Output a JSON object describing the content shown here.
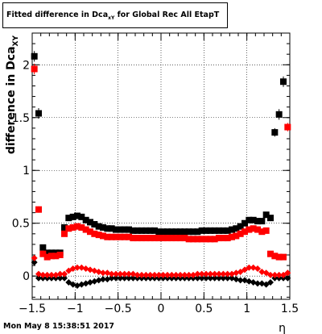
{
  "page": {
    "title_main": "Fitted difference in Dca",
    "title_sub": "xY",
    "title_rest": " for Global Rec All EtapT",
    "timestamp": "Mon May  8 15:38:51 2017"
  },
  "chart_data": {
    "type": "scatter",
    "title": "Fitted difference in Dca_xY for Global Rec All EtapT",
    "xlabel": "η",
    "ylabel": "difference in Dca",
    "ylabel_sub": "XY",
    "xlim": [
      -1.5,
      1.5
    ],
    "ylim": [
      -0.22,
      2.3
    ],
    "grid": true,
    "x_ticks": [
      -1.5,
      -1,
      -0.5,
      0,
      0.5,
      1,
      1.5
    ],
    "x_tick_labels": [
      "−1.5",
      "−1",
      "−0.5",
      "0",
      "0.5",
      "1",
      "1.5"
    ],
    "y_ticks": [
      0,
      0.5,
      1,
      1.5,
      2
    ],
    "y_tick_labels": [
      "0",
      "0.5",
      "1",
      "1.5",
      "2"
    ],
    "colors": {
      "black": "#000000",
      "red": "#ff0000"
    },
    "x": [
      -1.475,
      -1.425,
      -1.375,
      -1.325,
      -1.275,
      -1.225,
      -1.175,
      -1.125,
      -1.075,
      -1.025,
      -0.975,
      -0.925,
      -0.875,
      -0.825,
      -0.775,
      -0.725,
      -0.675,
      -0.625,
      -0.575,
      -0.525,
      -0.475,
      -0.425,
      -0.375,
      -0.325,
      -0.275,
      -0.225,
      -0.175,
      -0.125,
      -0.075,
      -0.025,
      0.025,
      0.075,
      0.125,
      0.175,
      0.225,
      0.275,
      0.325,
      0.375,
      0.425,
      0.475,
      0.525,
      0.575,
      0.625,
      0.675,
      0.725,
      0.775,
      0.825,
      0.875,
      0.925,
      0.975,
      1.025,
      1.075,
      1.125,
      1.175,
      1.225,
      1.275,
      1.325,
      1.375,
      1.425,
      1.475
    ],
    "series": [
      {
        "color": "black",
        "marker": "square",
        "err_high_only": false,
        "values": [
          2.08,
          1.54,
          0.27,
          0.22,
          0.22,
          0.22,
          0.22,
          0.46,
          0.55,
          0.56,
          0.57,
          0.56,
          0.53,
          0.51,
          0.49,
          0.47,
          0.46,
          0.45,
          0.45,
          0.44,
          0.44,
          0.44,
          0.44,
          0.43,
          0.43,
          0.43,
          0.43,
          0.43,
          0.43,
          0.42,
          0.42,
          0.42,
          0.42,
          0.42,
          0.42,
          0.42,
          0.42,
          0.42,
          0.42,
          0.43,
          0.43,
          0.43,
          0.43,
          0.43,
          0.43,
          0.43,
          0.44,
          0.45,
          0.47,
          0.5,
          0.53,
          0.53,
          0.52,
          0.52,
          0.58,
          0.55,
          1.36,
          1.53,
          1.84,
          null
        ],
        "errors": [
          0.05,
          0.05,
          0.02,
          0.01,
          0.01,
          0.01,
          0.01,
          0.01,
          0.01,
          0.01,
          0.01,
          0.01,
          0.01,
          0.01,
          0.01,
          0.01,
          0.01,
          0.01,
          0.01,
          0.01,
          0.01,
          0.01,
          0.01,
          0.01,
          0.01,
          0.01,
          0.01,
          0.01,
          0.01,
          0.01,
          0.01,
          0.01,
          0.01,
          0.01,
          0.01,
          0.01,
          0.01,
          0.01,
          0.01,
          0.01,
          0.01,
          0.01,
          0.01,
          0.01,
          0.01,
          0.01,
          0.01,
          0.01,
          0.01,
          0.01,
          0.01,
          0.01,
          0.01,
          0.01,
          0.02,
          0.02,
          0.04,
          0.05,
          0.05,
          0
        ]
      },
      {
        "color": "red",
        "marker": "square",
        "err_high_only": false,
        "values": [
          1.96,
          0.63,
          0.21,
          0.18,
          0.19,
          0.19,
          0.2,
          0.4,
          0.45,
          0.46,
          0.47,
          0.46,
          0.44,
          0.42,
          0.4,
          0.39,
          0.38,
          0.37,
          0.37,
          0.37,
          0.37,
          0.37,
          0.37,
          0.36,
          0.36,
          0.36,
          0.36,
          0.36,
          0.36,
          0.36,
          0.36,
          0.36,
          0.36,
          0.36,
          0.36,
          0.36,
          0.35,
          0.35,
          0.35,
          0.35,
          0.35,
          0.35,
          0.35,
          0.36,
          0.36,
          0.36,
          0.37,
          0.38,
          0.4,
          0.42,
          0.44,
          0.45,
          0.44,
          0.42,
          0.43,
          0.21,
          0.19,
          0.18,
          0.18,
          1.41
        ],
        "errors": [
          0.05,
          0.03,
          0.01,
          0.01,
          0.01,
          0.01,
          0.01,
          0.01,
          0.01,
          0.01,
          0.01,
          0.01,
          0.01,
          0.01,
          0.01,
          0.01,
          0.01,
          0.01,
          0.01,
          0.01,
          0.01,
          0.01,
          0.01,
          0.01,
          0.01,
          0.01,
          0.01,
          0.01,
          0.01,
          0.01,
          0.01,
          0.01,
          0.01,
          0.01,
          0.01,
          0.01,
          0.01,
          0.01,
          0.01,
          0.01,
          0.01,
          0.01,
          0.01,
          0.01,
          0.01,
          0.01,
          0.01,
          0.01,
          0.01,
          0.01,
          0.01,
          0.01,
          0.01,
          0.01,
          0.01,
          0.01,
          0.01,
          0.01,
          0.01,
          0.04
        ]
      },
      {
        "color": "black",
        "marker": "diamond",
        "err_high_only": false,
        "values": [
          0.13,
          -0.02,
          -0.02,
          -0.02,
          -0.02,
          -0.02,
          -0.02,
          -0.02,
          -0.06,
          -0.08,
          -0.09,
          -0.08,
          -0.07,
          -0.06,
          -0.05,
          -0.04,
          -0.03,
          -0.03,
          -0.02,
          -0.02,
          -0.02,
          -0.02,
          -0.02,
          -0.02,
          -0.02,
          -0.02,
          -0.02,
          -0.02,
          -0.02,
          -0.02,
          -0.02,
          -0.02,
          -0.02,
          -0.02,
          -0.02,
          -0.02,
          -0.02,
          -0.02,
          -0.02,
          -0.02,
          -0.02,
          -0.02,
          -0.02,
          -0.02,
          -0.02,
          -0.02,
          -0.02,
          -0.03,
          -0.04,
          -0.04,
          -0.05,
          -0.06,
          -0.07,
          -0.07,
          -0.08,
          -0.06,
          -0.02,
          -0.02,
          -0.02,
          -0.02
        ],
        "errors": [
          0.01,
          0.01,
          0.01,
          0.01,
          0.01,
          0.01,
          0.01,
          0.01,
          0.01,
          0.01,
          0.01,
          0.01,
          0.01,
          0.01,
          0.01,
          0.01,
          0.01,
          0.01,
          0.01,
          0.01,
          0.01,
          0.01,
          0.01,
          0.01,
          0.01,
          0.01,
          0.01,
          0.01,
          0.01,
          0.01,
          0.01,
          0.01,
          0.01,
          0.01,
          0.01,
          0.01,
          0.01,
          0.01,
          0.01,
          0.01,
          0.01,
          0.01,
          0.01,
          0.01,
          0.01,
          0.01,
          0.01,
          0.01,
          0.01,
          0.01,
          0.01,
          0.01,
          0.01,
          0.01,
          0.01,
          0.01,
          0.01,
          0.01,
          0.01,
          0.01
        ]
      },
      {
        "color": "red",
        "marker": "diamond",
        "err_high_only": false,
        "values": [
          0.17,
          0.02,
          0.01,
          0.01,
          0.01,
          0.01,
          0.02,
          0.02,
          0.05,
          0.07,
          0.08,
          0.08,
          0.07,
          0.06,
          0.05,
          0.04,
          0.03,
          0.03,
          0.02,
          0.02,
          0.02,
          0.02,
          0.02,
          0.02,
          0.01,
          0.01,
          0.01,
          0.01,
          0.01,
          0.01,
          0.01,
          0.01,
          0.01,
          0.01,
          0.01,
          0.01,
          0.01,
          0.01,
          0.02,
          0.02,
          0.02,
          0.02,
          0.02,
          0.02,
          0.02,
          0.02,
          0.02,
          0.03,
          0.04,
          0.06,
          0.08,
          0.08,
          0.07,
          0.04,
          0.03,
          0.01,
          0.01,
          0.01,
          0.01,
          0.03
        ],
        "errors": [
          0.01,
          0.01,
          0.01,
          0.01,
          0.01,
          0.01,
          0.01,
          0.01,
          0.01,
          0.01,
          0.01,
          0.01,
          0.01,
          0.01,
          0.01,
          0.01,
          0.01,
          0.01,
          0.01,
          0.01,
          0.01,
          0.01,
          0.01,
          0.01,
          0.01,
          0.01,
          0.01,
          0.01,
          0.01,
          0.01,
          0.01,
          0.01,
          0.01,
          0.01,
          0.01,
          0.01,
          0.01,
          0.01,
          0.01,
          0.01,
          0.01,
          0.01,
          0.01,
          0.01,
          0.01,
          0.01,
          0.01,
          0.01,
          0.01,
          0.01,
          0.01,
          0.01,
          0.01,
          0.01,
          0.01,
          0.01,
          0.01,
          0.01,
          0.01,
          0.01
        ]
      }
    ]
  }
}
